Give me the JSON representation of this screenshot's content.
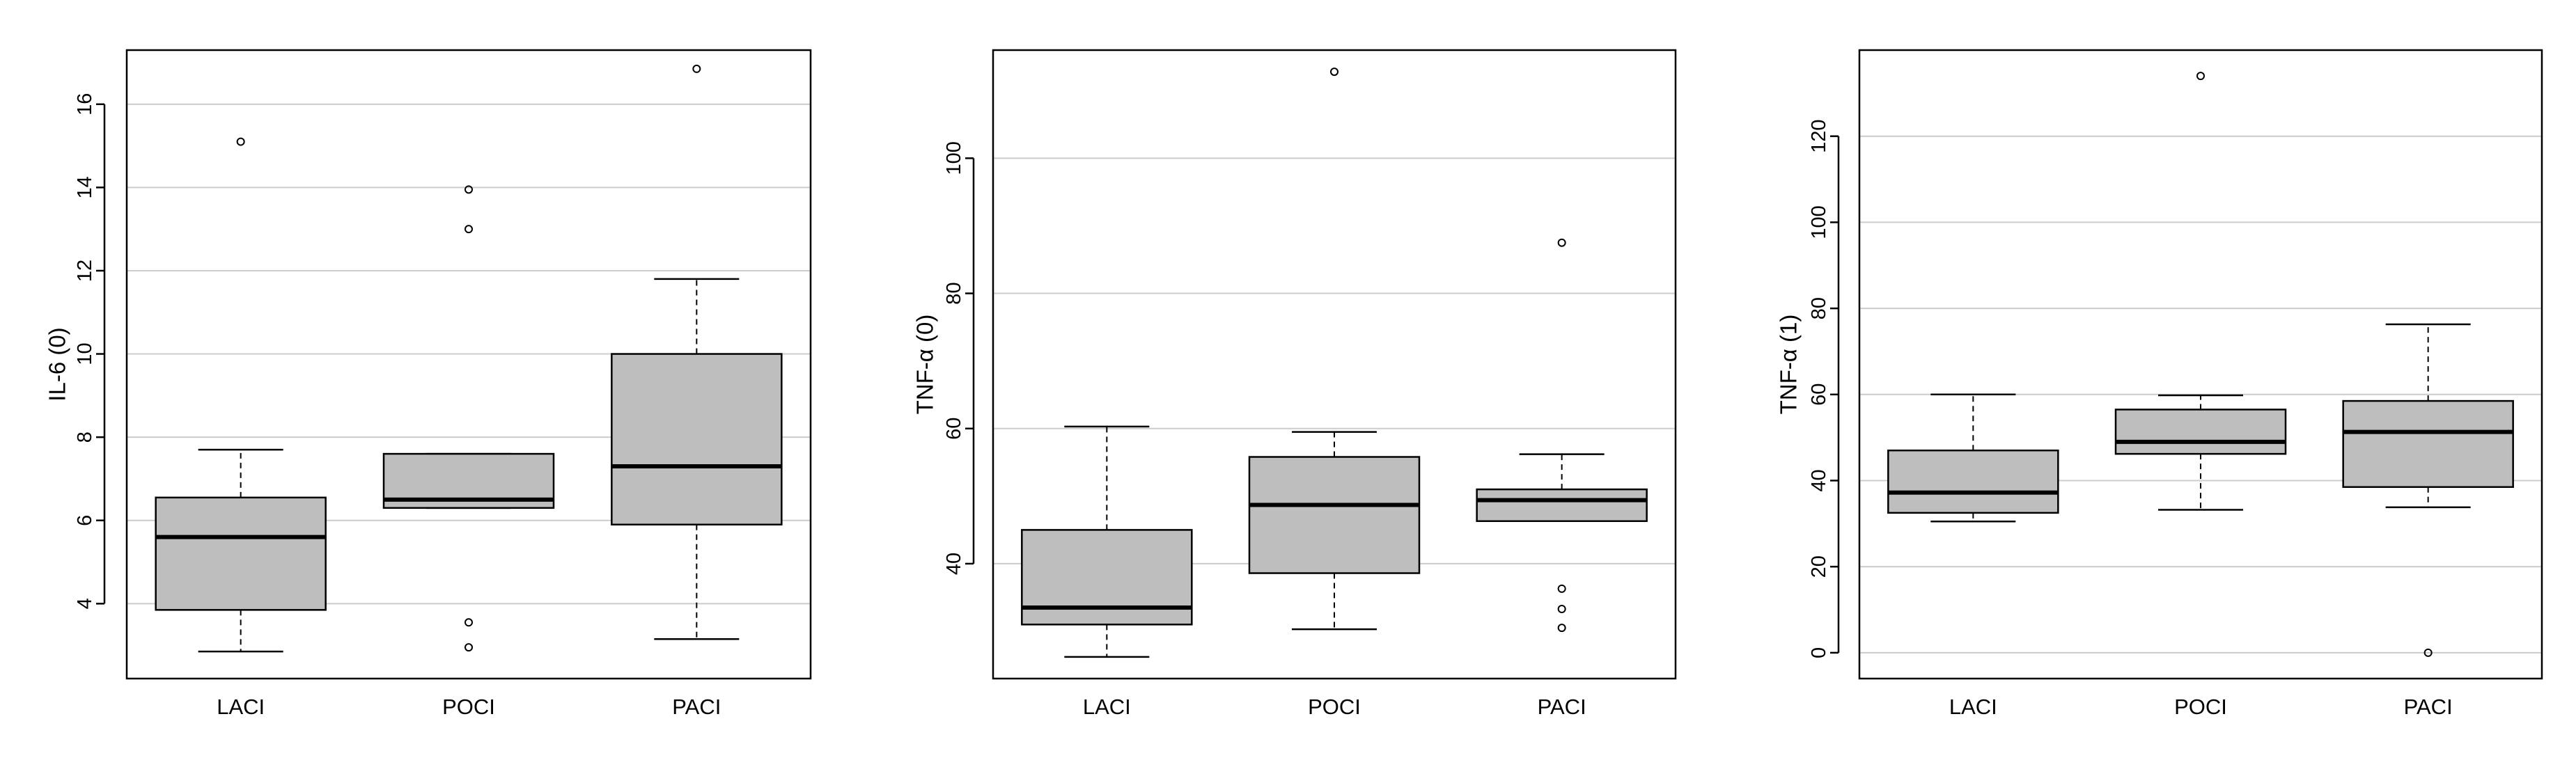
{
  "chart_data": [
    {
      "type": "boxplot",
      "categories": [
        "LACI",
        "POCI",
        "PACI"
      ],
      "ylabel": "IL-6 (0)",
      "ylim": [
        2.2,
        17.3
      ],
      "yticks": [
        4,
        6,
        8,
        10,
        12,
        14,
        16
      ],
      "grid": "horizontal",
      "boxes": [
        {
          "category": "LACI",
          "whisker_low": 2.85,
          "q1": 3.85,
          "median": 5.6,
          "q3": 6.55,
          "whisker_high": 7.7,
          "outliers": [
            15.1
          ]
        },
        {
          "category": "POCI",
          "whisker_low": 6.3,
          "q1": 6.3,
          "median": 6.5,
          "q3": 7.6,
          "whisker_high": 7.6,
          "outliers": [
            13.95,
            13.0,
            3.55,
            2.95
          ]
        },
        {
          "category": "PACI",
          "whisker_low": 3.15,
          "q1": 5.9,
          "median": 7.3,
          "q3": 10.0,
          "whisker_high": 11.8,
          "outliers": [
            16.85
          ]
        }
      ]
    },
    {
      "type": "boxplot",
      "categories": [
        "LACI",
        "POCI",
        "PACI"
      ],
      "ylabel": "TNF-α (0)",
      "ylim": [
        23,
        116
      ],
      "yticks": [
        40,
        60,
        80,
        100
      ],
      "grid": "horizontal",
      "boxes": [
        {
          "category": "LACI",
          "whisker_low": 26.2,
          "q1": 31.0,
          "median": 33.5,
          "q3": 45.0,
          "whisker_high": 60.3,
          "outliers": []
        },
        {
          "category": "POCI",
          "whisker_low": 30.3,
          "q1": 38.6,
          "median": 48.7,
          "q3": 55.8,
          "whisker_high": 59.5,
          "outliers": [
            112.8
          ]
        },
        {
          "category": "PACI",
          "whisker_low": 46.3,
          "q1": 46.3,
          "median": 49.4,
          "q3": 51.0,
          "whisker_high": 56.2,
          "outliers": [
            87.5,
            36.3,
            33.3,
            30.5
          ]
        }
      ]
    },
    {
      "type": "boxplot",
      "categories": [
        "LACI",
        "POCI",
        "PACI"
      ],
      "ylabel": "TNF-α (1)",
      "ylim": [
        -6,
        140
      ],
      "yticks": [
        0,
        20,
        40,
        60,
        80,
        100,
        120
      ],
      "grid": "horizontal",
      "boxes": [
        {
          "category": "LACI",
          "whisker_low": 30.5,
          "q1": 32.5,
          "median": 37.2,
          "q3": 47.0,
          "whisker_high": 60.0,
          "outliers": []
        },
        {
          "category": "POCI",
          "whisker_low": 33.2,
          "q1": 46.2,
          "median": 49.0,
          "q3": 56.5,
          "whisker_high": 59.8,
          "outliers": [
            134.0
          ]
        },
        {
          "category": "PACI",
          "whisker_low": 33.8,
          "q1": 38.5,
          "median": 51.3,
          "q3": 58.5,
          "whisker_high": 76.3,
          "outliers": [
            0
          ]
        }
      ]
    }
  ],
  "colors": {
    "box_fill": "#bebebe",
    "grid": "#cccccc",
    "axis": "#000000"
  }
}
